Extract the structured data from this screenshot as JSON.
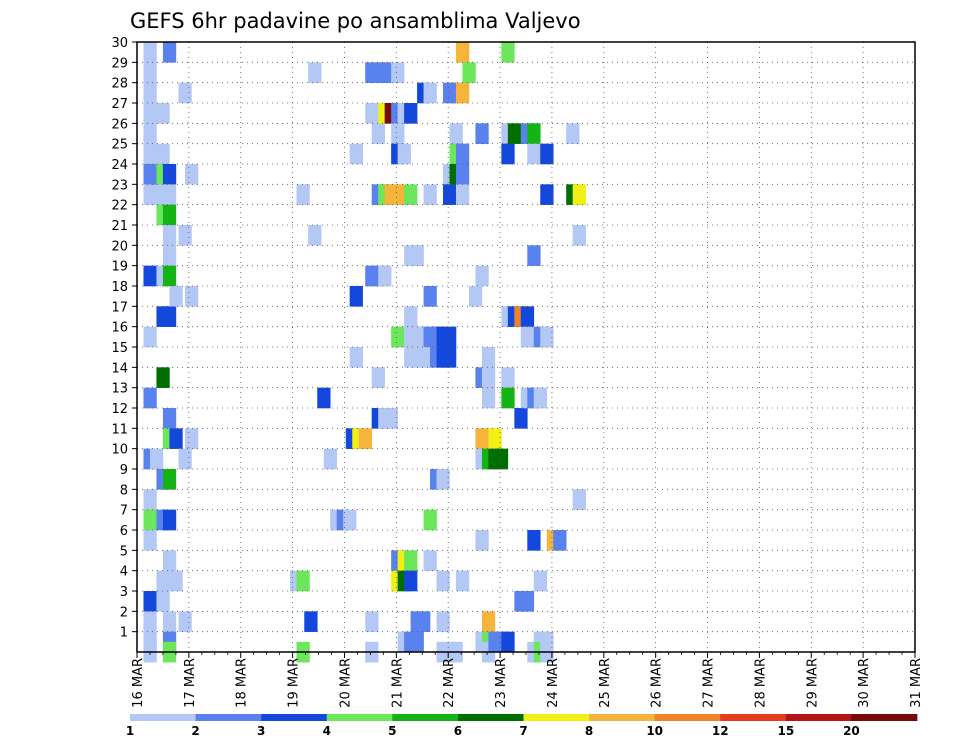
{
  "chart_data": {
    "type": "heatmap",
    "title": "GEFS 6hr padavine po ansamblima Valjevo",
    "xlabel": "",
    "ylabel": "",
    "x_ticks": [
      "16 MAR",
      "17 MAR",
      "18 MAR",
      "19 MAR",
      "20 MAR",
      "21 MAR",
      "22 MAR",
      "23 MAR",
      "24 MAR",
      "25 MAR",
      "26 MAR",
      "27 MAR",
      "28 MAR",
      "29 MAR",
      "30 MAR",
      "31 MAR"
    ],
    "y_ticks": [
      1,
      2,
      3,
      4,
      5,
      6,
      7,
      8,
      9,
      10,
      11,
      12,
      13,
      14,
      15,
      16,
      17,
      18,
      19,
      20,
      21,
      22,
      23,
      24,
      25,
      26,
      27,
      28,
      29,
      30
    ],
    "x_range_steps": [
      0,
      60
    ],
    "y_range_members": [
      0,
      30
    ],
    "grid": true,
    "legend_position": "bottom",
    "colorbar": {
      "labels": [
        "1",
        "2",
        "3",
        "4",
        "5",
        "6",
        "7",
        "8",
        "10",
        "12",
        "15",
        "20"
      ],
      "colors": [
        "#b4c8f5",
        "#5a82ee",
        "#1448dc",
        "#6ce65a",
        "#14b414",
        "#006e00",
        "#f0f014",
        "#f5b43c",
        "#f08228",
        "#e63c1e",
        "#b41414",
        "#780a0a"
      ]
    },
    "cells": [
      [
        0.5,
        30,
        1
      ],
      [
        0.5,
        29,
        1
      ],
      [
        0.5,
        28,
        1
      ],
      [
        0.5,
        27,
        1
      ],
      [
        0.5,
        26,
        1
      ],
      [
        0.5,
        25,
        1
      ],
      [
        0.5,
        24,
        2
      ],
      [
        0.5,
        23,
        1
      ],
      [
        0.5,
        19,
        3
      ],
      [
        0.5,
        16,
        1
      ],
      [
        0.5,
        13,
        2
      ],
      [
        0.5,
        10,
        2
      ],
      [
        0.5,
        8,
        1
      ],
      [
        0.5,
        7,
        4
      ],
      [
        0.5,
        6,
        1
      ],
      [
        0.5,
        3,
        3
      ],
      [
        0.5,
        2,
        1
      ],
      [
        0.5,
        1,
        1
      ],
      [
        0.5,
        0.5,
        1
      ],
      [
        1,
        24,
        2
      ],
      [
        1,
        10,
        1
      ],
      [
        1.5,
        27,
        1
      ],
      [
        1.5,
        25,
        1
      ],
      [
        1.5,
        24,
        4
      ],
      [
        1.5,
        23,
        1
      ],
      [
        1.5,
        22,
        4
      ],
      [
        1.5,
        19,
        1
      ],
      [
        1.5,
        17,
        3
      ],
      [
        1.5,
        14,
        6
      ],
      [
        1.5,
        9,
        2
      ],
      [
        1.5,
        7,
        2
      ],
      [
        1.5,
        4,
        1
      ],
      [
        1.5,
        3,
        1
      ],
      [
        2,
        30,
        2
      ],
      [
        2,
        24,
        3
      ],
      [
        2,
        23,
        1
      ],
      [
        2,
        22,
        5
      ],
      [
        2,
        21,
        1
      ],
      [
        2,
        20,
        1
      ],
      [
        2,
        19,
        5
      ],
      [
        2,
        17,
        3
      ],
      [
        2,
        12,
        2
      ],
      [
        2,
        11,
        4
      ],
      [
        2,
        9,
        5
      ],
      [
        2,
        7,
        3
      ],
      [
        2,
        5,
        1
      ],
      [
        2,
        2,
        1
      ],
      [
        2,
        1,
        2
      ],
      [
        2,
        0.5,
        4
      ],
      [
        2.5,
        18,
        1
      ],
      [
        2.5,
        11,
        3
      ],
      [
        2.5,
        4,
        1
      ],
      [
        3.2,
        28,
        1
      ],
      [
        3.2,
        21,
        1
      ],
      [
        3.2,
        10,
        1
      ],
      [
        3.2,
        2,
        1
      ],
      [
        3.7,
        24,
        1
      ],
      [
        3.7,
        18,
        1
      ],
      [
        3.7,
        11,
        1
      ],
      [
        11.8,
        4,
        1
      ],
      [
        12.3,
        23,
        1
      ],
      [
        12.3,
        4,
        4
      ],
      [
        12.3,
        0.5,
        4
      ],
      [
        12.9,
        2,
        3
      ],
      [
        13.2,
        29,
        1
      ],
      [
        13.2,
        21,
        1
      ],
      [
        13.9,
        13,
        3
      ],
      [
        14.4,
        10,
        1
      ],
      [
        14.9,
        7,
        1
      ],
      [
        15.4,
        7,
        2
      ],
      [
        15.9,
        7,
        1
      ],
      [
        16.1,
        11,
        3
      ],
      [
        16.4,
        25,
        1
      ],
      [
        16.4,
        18,
        3
      ],
      [
        16.4,
        15,
        1
      ],
      [
        16.6,
        11,
        7
      ],
      [
        17.1,
        11,
        8
      ],
      [
        17.6,
        29,
        2
      ],
      [
        17.6,
        27,
        1
      ],
      [
        17.6,
        19,
        2
      ],
      [
        17.6,
        2,
        1
      ],
      [
        17.6,
        0.5,
        1
      ],
      [
        18.1,
        27,
        1
      ],
      [
        18.1,
        26,
        1
      ],
      [
        18.1,
        23,
        2
      ],
      [
        18.1,
        19,
        2
      ],
      [
        18.1,
        14,
        1
      ],
      [
        18.1,
        12,
        3
      ],
      [
        18.6,
        29,
        2
      ],
      [
        18.6,
        27,
        7
      ],
      [
        18.6,
        23,
        4
      ],
      [
        18.6,
        19,
        1
      ],
      [
        18.6,
        12,
        1
      ],
      [
        19.1,
        27,
        12
      ],
      [
        19.1,
        23,
        8
      ],
      [
        19.1,
        12,
        1
      ],
      [
        19.6,
        29,
        1
      ],
      [
        19.6,
        27,
        2
      ],
      [
        19.6,
        26,
        1
      ],
      [
        19.6,
        25,
        3
      ],
      [
        19.6,
        23,
        8
      ],
      [
        19.6,
        16,
        4
      ],
      [
        19.6,
        5,
        2
      ],
      [
        19.6,
        4,
        7
      ],
      [
        20.1,
        27,
        1
      ],
      [
        20.1,
        25,
        1
      ],
      [
        20.1,
        5,
        7
      ],
      [
        20.1,
        4,
        6
      ],
      [
        20.1,
        1,
        1
      ],
      [
        20.6,
        27,
        3
      ],
      [
        20.6,
        23,
        4
      ],
      [
        20.6,
        20,
        1
      ],
      [
        20.6,
        17,
        1
      ],
      [
        20.6,
        16,
        1
      ],
      [
        20.6,
        15,
        1
      ],
      [
        20.6,
        5,
        4
      ],
      [
        20.6,
        4,
        3
      ],
      [
        20.6,
        1,
        2
      ],
      [
        21.1,
        20,
        1
      ],
      [
        21.1,
        16,
        1
      ],
      [
        21.1,
        15,
        1
      ],
      [
        21.1,
        2,
        2
      ],
      [
        21.1,
        1,
        2
      ],
      [
        21.6,
        28,
        3
      ],
      [
        21.6,
        16,
        1
      ],
      [
        21.6,
        15,
        1
      ],
      [
        21.6,
        2,
        2
      ],
      [
        22.1,
        28,
        1
      ],
      [
        22.1,
        23,
        1
      ],
      [
        22.1,
        18,
        2
      ],
      [
        22.1,
        16,
        2
      ],
      [
        22.1,
        15,
        1
      ],
      [
        22.1,
        7,
        4
      ],
      [
        22.1,
        5,
        1
      ],
      [
        22.6,
        16,
        2
      ],
      [
        22.6,
        15,
        2
      ],
      [
        22.6,
        9,
        2
      ],
      [
        23.1,
        16,
        3
      ],
      [
        23.1,
        15,
        3
      ],
      [
        23.1,
        9,
        1
      ],
      [
        23.1,
        4,
        1
      ],
      [
        23.1,
        2,
        1
      ],
      [
        23.1,
        0.5,
        1
      ],
      [
        23.6,
        28,
        2
      ],
      [
        23.6,
        24,
        1
      ],
      [
        23.6,
        23,
        3
      ],
      [
        23.6,
        16,
        3
      ],
      [
        23.6,
        15,
        3
      ],
      [
        23.6,
        0.5,
        1
      ],
      [
        24.1,
        28,
        2
      ],
      [
        24.1,
        26,
        1
      ],
      [
        24.1,
        25,
        4
      ],
      [
        24.1,
        24,
        6
      ],
      [
        24.1,
        0.5,
        1
      ],
      [
        24.6,
        30,
        8
      ],
      [
        24.6,
        28,
        8
      ],
      [
        24.6,
        25,
        2
      ],
      [
        24.6,
        24,
        2
      ],
      [
        24.6,
        23,
        1
      ],
      [
        24.6,
        4,
        1
      ],
      [
        25.1,
        29,
        4
      ],
      [
        25.6,
        18,
        1
      ],
      [
        26.1,
        26,
        2
      ],
      [
        26.1,
        19,
        1
      ],
      [
        26.1,
        14,
        2
      ],
      [
        26.1,
        11,
        8
      ],
      [
        26.1,
        10,
        1
      ],
      [
        26.1,
        6,
        1
      ],
      [
        26.1,
        1,
        1
      ],
      [
        26.6,
        15,
        1
      ],
      [
        26.6,
        14,
        1
      ],
      [
        26.6,
        13,
        1
      ],
      [
        26.6,
        11,
        8
      ],
      [
        26.6,
        10,
        5
      ],
      [
        26.6,
        2,
        8
      ],
      [
        26.6,
        1,
        4
      ],
      [
        26.6,
        0.5,
        1
      ],
      [
        27.1,
        11,
        7
      ],
      [
        27.1,
        10,
        6
      ],
      [
        27.1,
        1,
        2
      ],
      [
        27.6,
        10,
        6
      ],
      [
        27.6,
        1,
        2
      ],
      [
        28.1,
        30,
        4
      ],
      [
        28.1,
        26,
        1
      ],
      [
        28.1,
        25,
        3
      ],
      [
        28.1,
        17,
        1
      ],
      [
        28.1,
        14,
        1
      ],
      [
        28.1,
        13,
        5
      ],
      [
        28.1,
        1,
        3
      ],
      [
        28.6,
        26,
        6
      ],
      [
        28.6,
        17,
        3
      ],
      [
        29.1,
        17,
        9
      ],
      [
        29.1,
        12,
        3
      ],
      [
        29.1,
        3,
        2
      ],
      [
        29.6,
        26,
        2
      ],
      [
        29.6,
        17,
        3
      ],
      [
        29.6,
        16,
        1
      ],
      [
        29.6,
        13,
        1
      ],
      [
        29.6,
        3,
        2
      ],
      [
        30.1,
        26,
        5
      ],
      [
        30.1,
        25,
        1
      ],
      [
        30.1,
        20,
        2
      ],
      [
        30.1,
        13,
        2
      ],
      [
        30.1,
        6,
        3
      ],
      [
        30.1,
        0.5,
        1
      ],
      [
        30.6,
        16,
        2
      ],
      [
        30.6,
        13,
        1
      ],
      [
        30.6,
        4,
        1
      ],
      [
        30.6,
        1,
        1
      ],
      [
        30.6,
        0.5,
        4
      ],
      [
        31.1,
        25,
        3
      ],
      [
        31.1,
        23,
        3
      ],
      [
        31.1,
        16,
        1
      ],
      [
        31.1,
        1,
        1
      ],
      [
        31.1,
        0.5,
        1
      ],
      [
        31.6,
        6,
        8
      ],
      [
        32.1,
        6,
        2
      ],
      [
        33.1,
        26,
        1
      ],
      [
        33.1,
        23,
        6
      ],
      [
        33.6,
        23,
        7
      ],
      [
        33.6,
        21,
        1
      ],
      [
        33.6,
        8,
        1
      ]
    ]
  }
}
